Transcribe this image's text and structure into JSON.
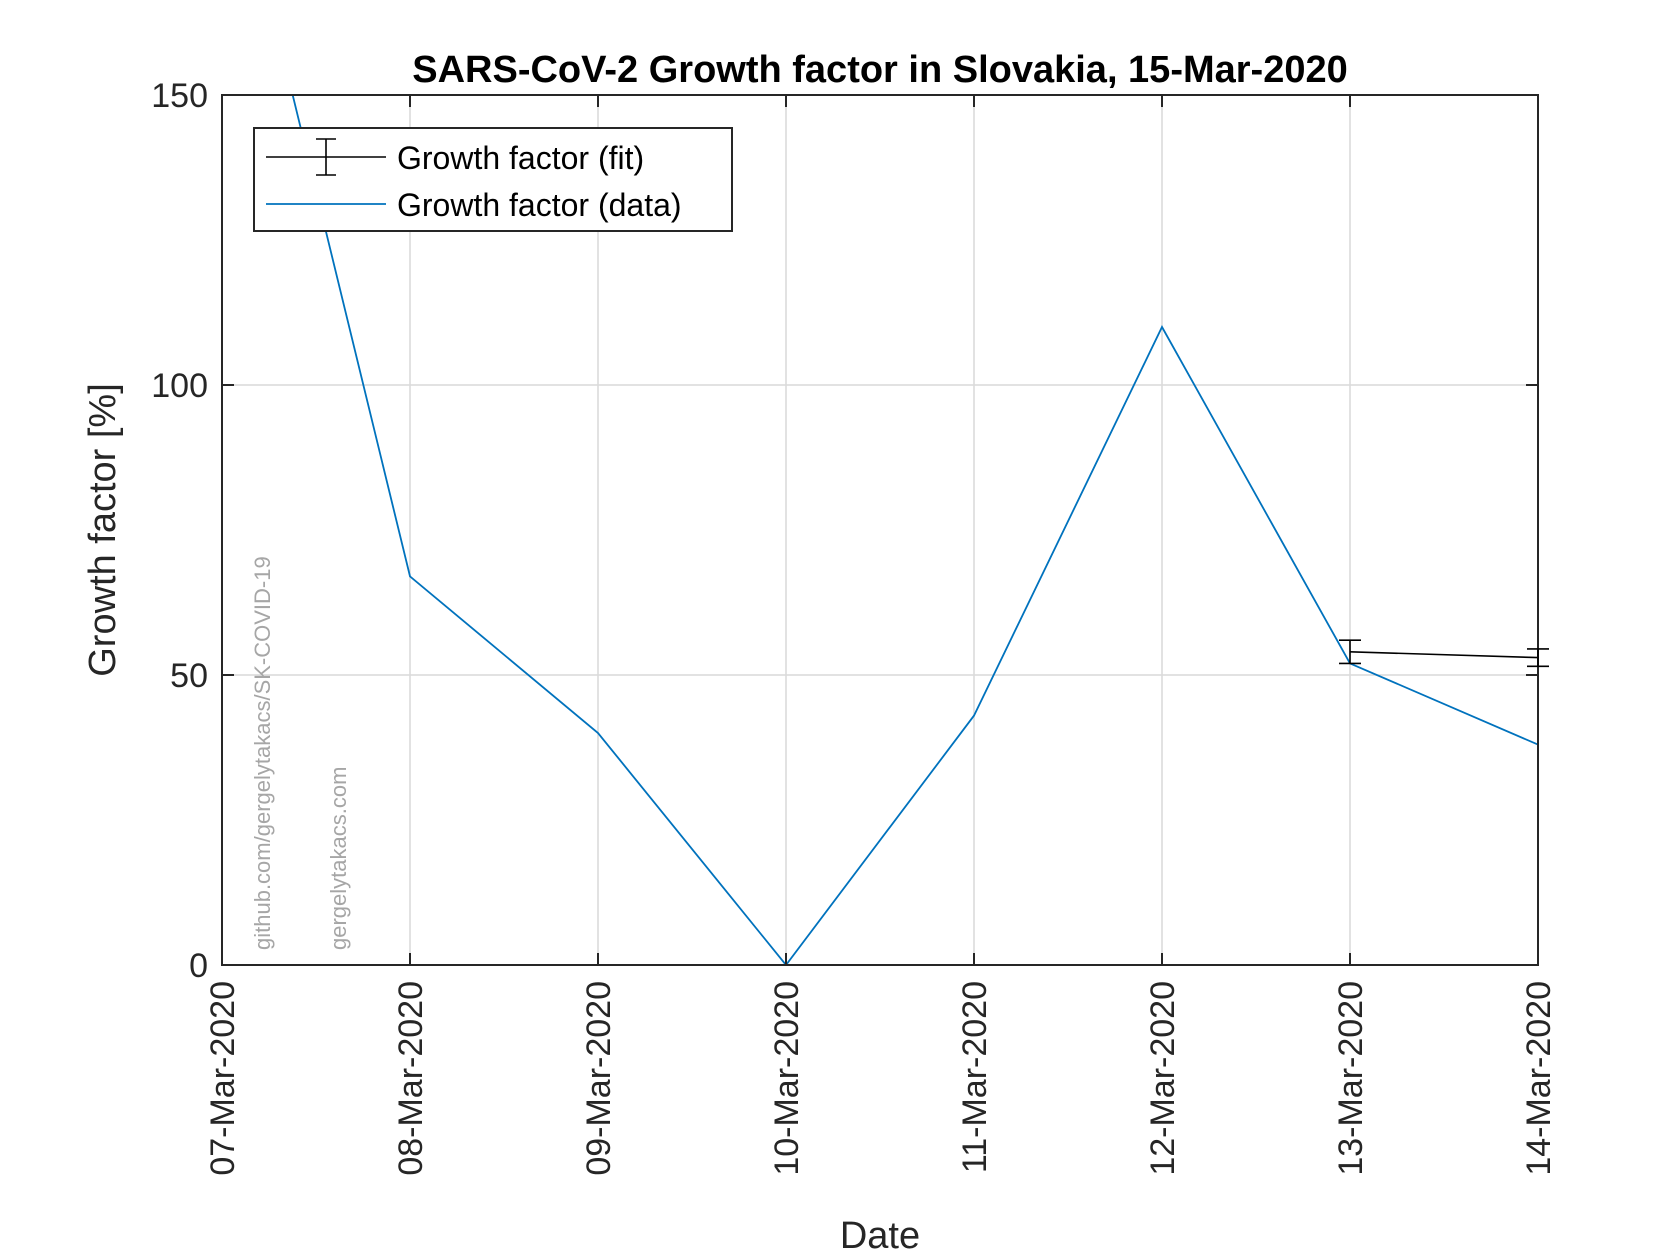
{
  "chart_data": {
    "type": "line",
    "title": "SARS-CoV-2 Growth factor in Slovakia, 15-Mar-2020",
    "xlabel": "Date",
    "ylabel": "Growth factor [%]",
    "categories": [
      "07-Mar-2020",
      "08-Mar-2020",
      "09-Mar-2020",
      "10-Mar-2020",
      "11-Mar-2020",
      "12-Mar-2020",
      "13-Mar-2020",
      "14-Mar-2020"
    ],
    "ylim": [
      0,
      150
    ],
    "yticks": [
      0,
      50,
      100,
      150
    ],
    "grid": true,
    "legend_position": "top-left",
    "series": [
      {
        "name": "Growth factor (fit)",
        "color": "#000000",
        "style": "errorbar",
        "x": [
          "13-Mar-2020",
          "14-Mar-2020"
        ],
        "values": [
          54,
          53
        ],
        "error": [
          2,
          1.5
        ]
      },
      {
        "name": "Growth factor (data)",
        "color": "#0072BD",
        "style": "line",
        "x": [
          "07-Mar-2020",
          "08-Mar-2020",
          "09-Mar-2020",
          "10-Mar-2020",
          "11-Mar-2020",
          "12-Mar-2020",
          "13-Mar-2020",
          "14-Mar-2020"
        ],
        "values": [
          200,
          67,
          40,
          0,
          43,
          110,
          52,
          38
        ]
      }
    ],
    "watermarks": [
      "github.com/gergelytakacs/SK-COVID-19",
      "gergelytakacs.com"
    ]
  }
}
